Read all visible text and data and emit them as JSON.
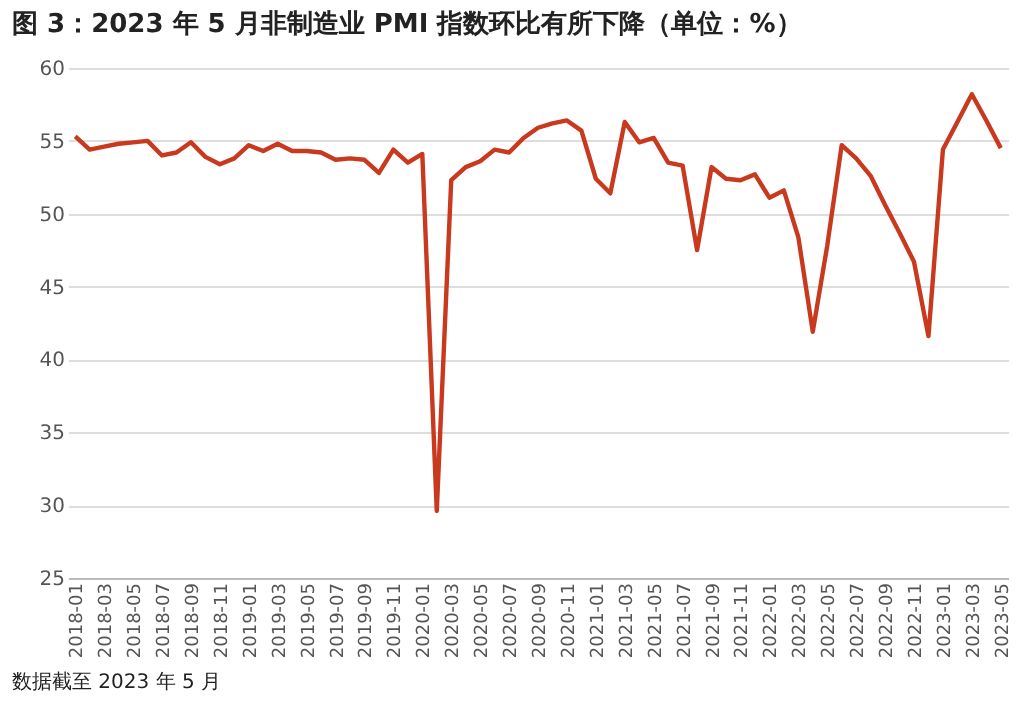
{
  "chart_data": {
    "type": "line",
    "title": "图 3：2023 年 5 月非制造业 PMI 指数环比有所下降（单位：%）",
    "categories": [
      "2018-01",
      null,
      "2018-03",
      null,
      "2018-05",
      null,
      "2018-07",
      null,
      "2018-09",
      null,
      "2018-11",
      null,
      "2019-01",
      null,
      "2019-03",
      null,
      "2019-05",
      null,
      "2019-07",
      null,
      "2019-09",
      null,
      "2019-11",
      null,
      "2020-01",
      null,
      "2020-03",
      null,
      "2020-05",
      null,
      "2020-07",
      null,
      "2020-09",
      null,
      "2020-11",
      null,
      "2021-01",
      null,
      "2021-03",
      null,
      "2021-05",
      null,
      "2021-07",
      null,
      "2021-09",
      null,
      "2021-11",
      null,
      "2022-01",
      null,
      "2022-03",
      null,
      "2022-05",
      null,
      "2022-07",
      null,
      "2022-09",
      null,
      "2022-11",
      null,
      "2023-01",
      null,
      "2023-03",
      null,
      "2023-05"
    ],
    "series": [
      {
        "color": "#c8391e",
        "values": [
          55.3,
          54.4,
          54.6,
          54.8,
          54.9,
          55.0,
          54.0,
          54.2,
          54.9,
          53.9,
          53.4,
          53.8,
          54.7,
          54.3,
          54.8,
          54.3,
          54.3,
          54.2,
          53.7,
          53.8,
          53.7,
          52.8,
          54.4,
          53.5,
          54.1,
          29.6,
          52.3,
          53.2,
          53.6,
          54.4,
          54.2,
          55.2,
          55.9,
          56.2,
          56.4,
          55.7,
          52.4,
          51.4,
          56.3,
          54.9,
          55.2,
          53.5,
          53.3,
          47.5,
          53.2,
          52.4,
          52.3,
          52.7,
          51.1,
          51.6,
          48.4,
          41.9,
          47.8,
          54.7,
          53.8,
          52.6,
          50.6,
          48.7,
          46.7,
          41.6,
          54.4,
          56.3,
          58.2,
          56.4,
          54.5
        ]
      }
    ],
    "ylim": [
      25,
      60
    ],
    "yticks": [
      25,
      30,
      35,
      40,
      45,
      50,
      55,
      60
    ],
    "grid": "y",
    "line_style": "solid",
    "marker": "none",
    "annotations": [
      "数据截至 2023 年 5 月"
    ]
  }
}
